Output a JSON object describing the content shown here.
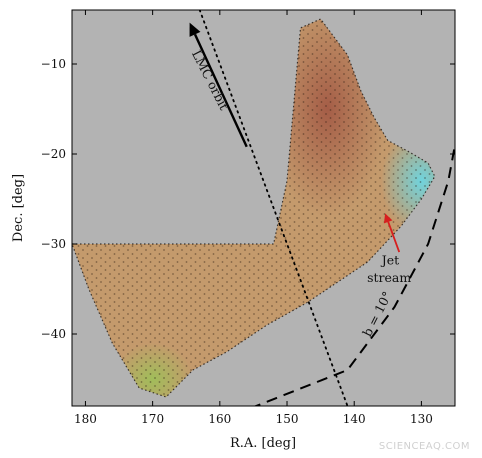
{
  "chart_data": {
    "type": "scatter",
    "title": "",
    "xlabel": "R.A. [deg]",
    "ylabel": "Dec. [deg]",
    "xlim": [
      182,
      125
    ],
    "ylim": [
      -48,
      -4
    ],
    "x_ticks": [
      180,
      170,
      160,
      150,
      140,
      130
    ],
    "y_ticks": [
      -10,
      -20,
      -30,
      -40
    ],
    "x_ticks_inverted": true,
    "background_color": "#b3b3b3",
    "footprint": {
      "outline": [
        [
          182,
          -30
        ],
        [
          152,
          -30
        ],
        [
          150,
          -23
        ],
        [
          148,
          -6
        ],
        [
          145,
          -5
        ],
        [
          141,
          -9
        ],
        [
          139,
          -13
        ],
        [
          137,
          -16
        ],
        [
          135,
          -18.5
        ],
        [
          132,
          -19.7
        ],
        [
          129,
          -21
        ],
        [
          128,
          -22.5
        ],
        [
          130,
          -25
        ],
        [
          133,
          -28
        ],
        [
          138,
          -32
        ],
        [
          147,
          -36.5
        ],
        [
          153,
          -39
        ],
        [
          159,
          -42
        ],
        [
          164,
          -44
        ],
        [
          168,
          -47
        ],
        [
          172,
          -46
        ],
        [
          176,
          -41
        ],
        [
          179.5,
          -35
        ]
      ],
      "colors": [
        "#c49a6c",
        "#a35a45",
        "#6fd4de",
        "#9fbf59"
      ]
    },
    "series": [
      {
        "type": "curve",
        "style": "dotted",
        "points": [
          [
            163,
            -4
          ],
          [
            141,
            -48
          ]
        ]
      },
      {
        "type": "curve",
        "style": "dashed",
        "points": [
          [
            158,
            -49
          ],
          [
            141,
            -44
          ],
          [
            134,
            -37
          ],
          [
            129,
            -30
          ],
          [
            126,
            -23
          ],
          [
            125,
            -19
          ]
        ]
      }
    ],
    "annotations": [
      {
        "text": "LMC orbit",
        "x": 162,
        "y": -12,
        "rotation": 63
      },
      {
        "text": "b = 10°",
        "x": 136,
        "y": -38,
        "rotation": -63
      },
      {
        "text": "Jet",
        "x": 134.6,
        "y": -32.3
      },
      {
        "text": "stream",
        "x": 134.8,
        "y": -34.2
      }
    ],
    "arrows": [
      {
        "label": "LMC orbit",
        "from": [
          156,
          -19.2
        ],
        "to": [
          164.5,
          -5.4
        ],
        "color": "#000000"
      },
      {
        "label": "Jet stream",
        "from": [
          133.3,
          -30.9
        ],
        "to": [
          135.4,
          -26.6
        ],
        "color": "#d61f1f"
      }
    ]
  },
  "watermark": "SCIENCEAQ.COM"
}
